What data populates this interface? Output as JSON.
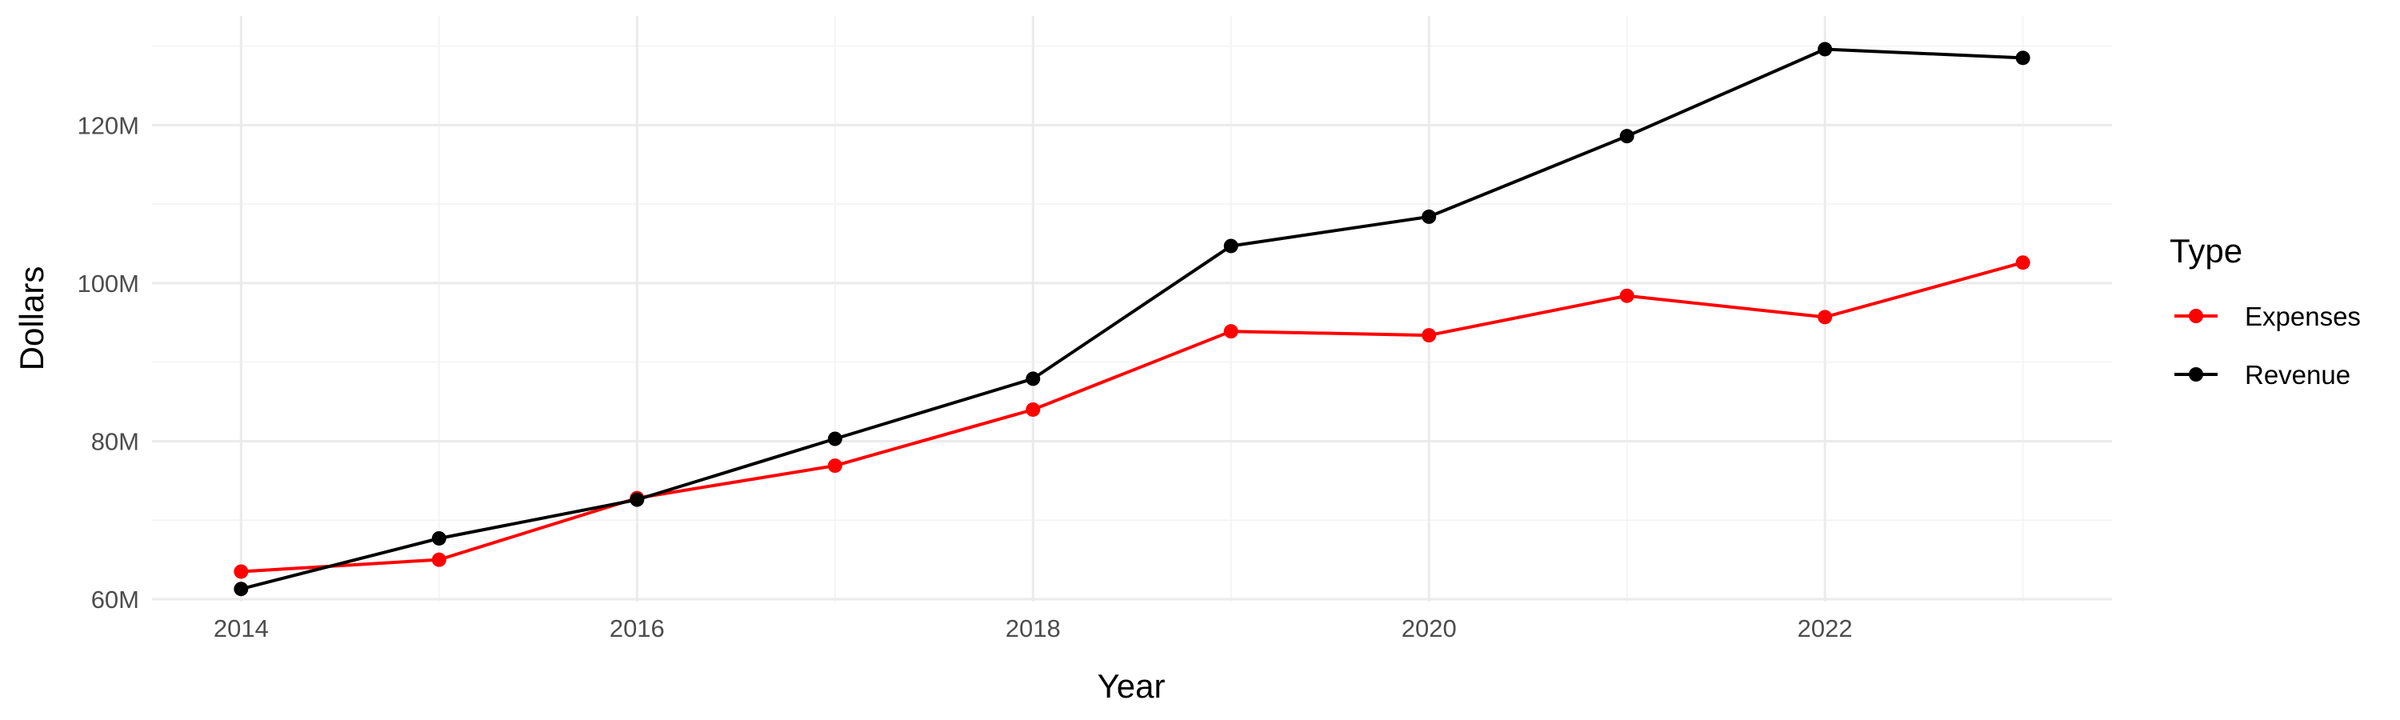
{
  "chart_data": {
    "type": "line",
    "title": "",
    "xlabel": "Year",
    "ylabel": "Dollars",
    "x": [
      2014,
      2015,
      2016,
      2017,
      2018,
      2019,
      2020,
      2021,
      2022,
      2023
    ],
    "xlim": [
      2013.55,
      2023.45
    ],
    "ylim": [
      59.7,
      133.8
    ],
    "x_ticks": [
      2014,
      2016,
      2018,
      2020,
      2022
    ],
    "x_tick_labels": [
      "2014",
      "2016",
      "2018",
      "2020",
      "2022"
    ],
    "y_ticks": [
      60,
      80,
      100,
      120
    ],
    "y_tick_labels": [
      "60M",
      "80M",
      "100M",
      "120M"
    ],
    "grid": true,
    "legend": {
      "title": "Type",
      "position": "right"
    },
    "series": [
      {
        "name": "Expenses",
        "color": "#ff0000",
        "values": [
          63.5,
          65.0,
          72.8,
          76.9,
          84.0,
          93.9,
          93.4,
          98.4,
          95.7,
          102.6
        ]
      },
      {
        "name": "Revenue",
        "color": "#000000",
        "values": [
          61.3,
          67.7,
          72.6,
          80.3,
          87.9,
          104.7,
          108.4,
          118.6,
          129.6,
          128.5
        ]
      }
    ]
  }
}
